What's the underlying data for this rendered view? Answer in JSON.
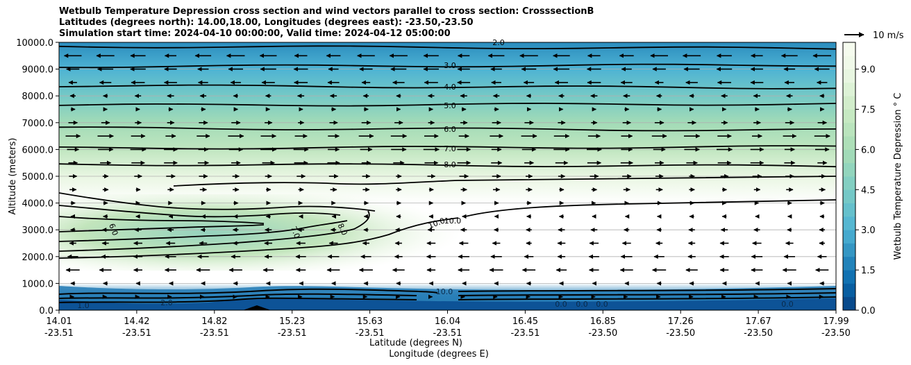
{
  "chart_data": {
    "type": "contour",
    "title_lines": [
      "Wetbulb Temperature Depression cross section and wind vectors parallel to cross section: CrosssectionB",
      "Latitudes (degrees north): 14.00,18.00, Longitudes (degrees east): -23.50,-23.50",
      "Simulation start time: 2024-04-10 00:00:00, Valid time: 2024-04-12 05:00:00"
    ],
    "ylabel": "Altitude (meters)",
    "xlabel_lat": "Latitude (degrees N)",
    "xlabel_lon": "Longitude (degrees E)",
    "ylim": [
      0,
      10000
    ],
    "y_ticks": [
      "0.0",
      "1000.0",
      "2000.0",
      "3000.0",
      "4000.0",
      "5000.0",
      "6000.0",
      "7000.0",
      "8000.0",
      "9000.0",
      "10000.0"
    ],
    "x_ticks": [
      {
        "lat": "14.01",
        "lon": "-23.51"
      },
      {
        "lat": "14.42",
        "lon": "-23.51"
      },
      {
        "lat": "14.82",
        "lon": "-23.51"
      },
      {
        "lat": "15.23",
        "lon": "-23.51"
      },
      {
        "lat": "15.63",
        "lon": "-23.51"
      },
      {
        "lat": "16.04",
        "lon": "-23.51"
      },
      {
        "lat": "16.45",
        "lon": "-23.51"
      },
      {
        "lat": "16.85",
        "lon": "-23.50"
      },
      {
        "lat": "17.26",
        "lon": "-23.50"
      },
      {
        "lat": "17.67",
        "lon": "-23.50"
      },
      {
        "lat": "17.99",
        "lon": "-23.50"
      }
    ],
    "colorbar": {
      "label": "Wetbulb Temperature Depression $^\\circ$C",
      "label_display": "Wetbulb Temperature Depression ° C",
      "range": [
        0,
        10
      ],
      "levels": 20,
      "ticks": [
        "0.0",
        "1.5",
        "3.0",
        "4.5",
        "6.0",
        "7.5",
        "9.0"
      ]
    },
    "quiver_key": {
      "label": "10 m/s"
    },
    "contour_labels_upper": [
      "2.0",
      "3.0",
      "4.0",
      "5.0",
      "6.0",
      "7.0",
      "8.0"
    ],
    "contour_labels_layer": [
      "6.0",
      "7.0",
      "8.0",
      "10.0",
      "10.0"
    ],
    "contour_labels_surface": [
      "1.0",
      "2.0",
      "10.0",
      "0.0",
      "0.0",
      "0.0",
      "0.0"
    ],
    "depression_profile": [
      {
        "z": 0,
        "value": 0.5
      },
      {
        "z": 500,
        "value": 1.5
      },
      {
        "z": 1000,
        "value": 10.5
      },
      {
        "z": 2500,
        "value": 10.5
      },
      {
        "z": 4000,
        "value": 10.2
      },
      {
        "z": 5000,
        "value": 8.8
      },
      {
        "z": 6000,
        "value": 7.0
      },
      {
        "z": 7000,
        "value": 5.8
      },
      {
        "z": 8000,
        "value": 4.3
      },
      {
        "z": 9000,
        "value": 3.0
      },
      {
        "z": 10000,
        "value": 2.0
      }
    ],
    "dry_layer": {
      "z_range": [
        2200,
        4200
      ],
      "value_range": [
        5.5,
        8.0
      ],
      "lat_extent": [
        "14.01",
        "15.8"
      ]
    },
    "contour_levels_upper": [
      2,
      3,
      4,
      5,
      6,
      7,
      8
    ],
    "contour_heights_upper": [
      9850,
      9100,
      8380,
      7650,
      6800,
      6050,
      5450
    ],
    "wind_rows": [
      {
        "z": 9500,
        "u": -8
      },
      {
        "z": 9000,
        "u": -7
      },
      {
        "z": 8500,
        "u": -6
      },
      {
        "z": 8000,
        "u": -3
      },
      {
        "z": 7500,
        "u": 2
      },
      {
        "z": 7000,
        "u": 4
      },
      {
        "z": 6500,
        "u": 7
      },
      {
        "z": 6000,
        "u": 7
      },
      {
        "z": 5500,
        "u": 6
      },
      {
        "z": 5000,
        "u": 4
      },
      {
        "z": 4500,
        "u": 3
      },
      {
        "z": 4000,
        "u": 2
      },
      {
        "z": 3500,
        "u": -2
      },
      {
        "z": 3000,
        "u": -3
      },
      {
        "z": 2500,
        "u": -4
      },
      {
        "z": 2000,
        "u": -5
      },
      {
        "z": 1500,
        "u": -6
      },
      {
        "z": 1000,
        "u": -2
      },
      {
        "z": 500,
        "u": 1
      }
    ]
  }
}
